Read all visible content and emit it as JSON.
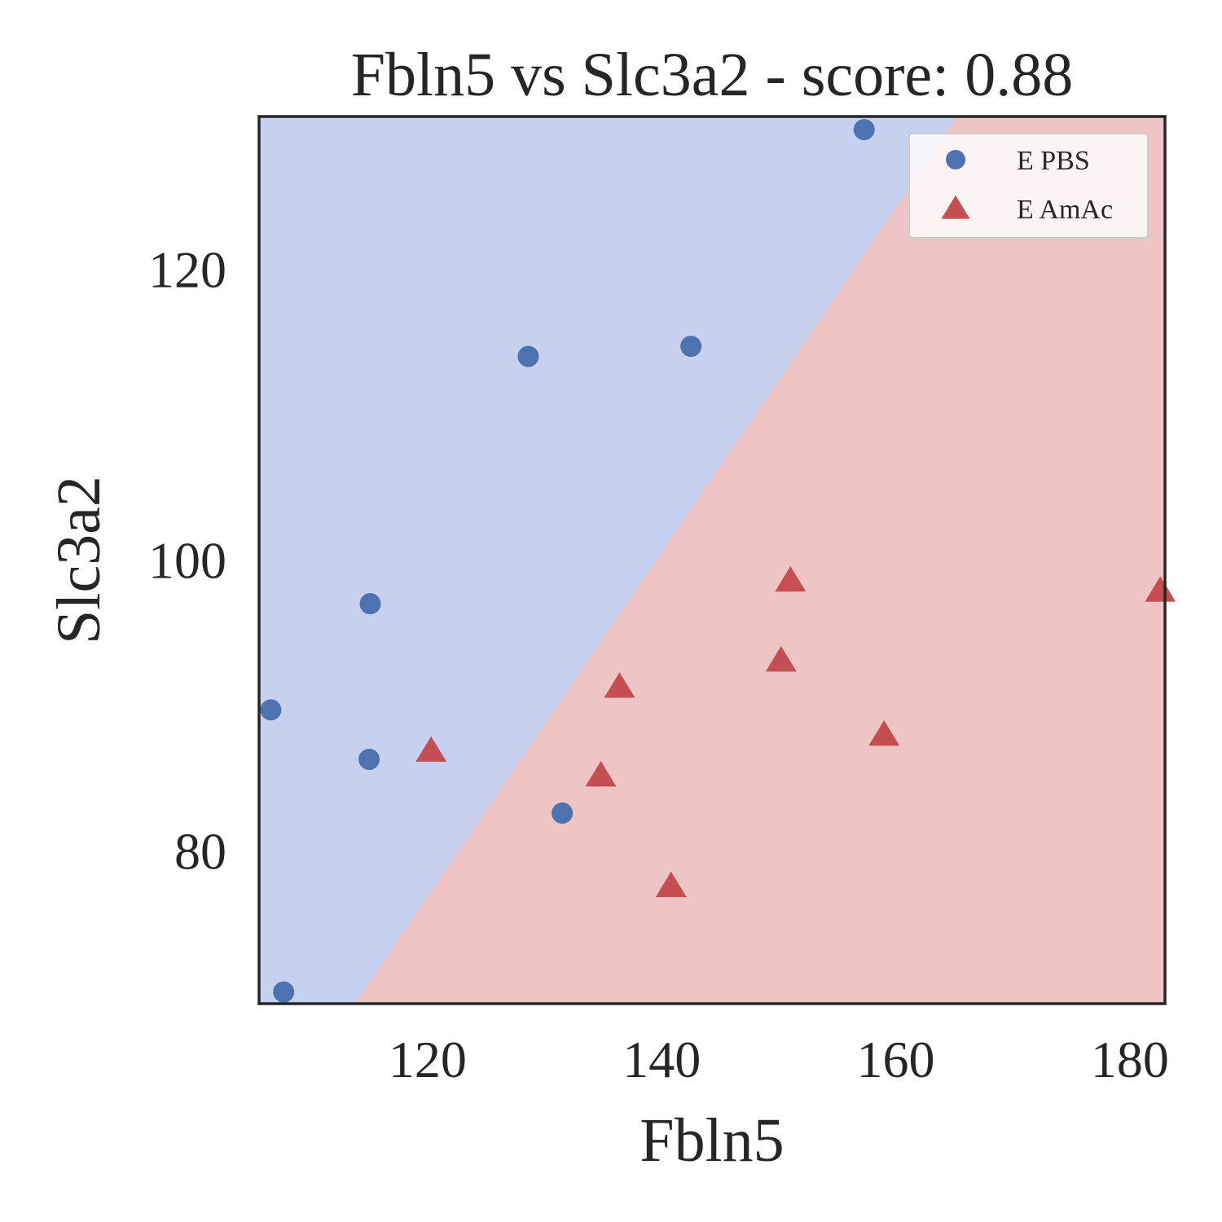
{
  "chart_data": {
    "type": "scatter",
    "title": "Fbln5 vs Slc3a2 - score: 0.88",
    "xlabel": "Fbln5",
    "ylabel": "Slc3a2",
    "xlim": [
      105.6,
      183.0
    ],
    "ylim": [
      69.5,
      130.5
    ],
    "xticks": [
      120,
      140,
      160,
      180
    ],
    "yticks": [
      80,
      100,
      120
    ],
    "grid": false,
    "legend_position": "top-right",
    "decision_boundary": {
      "points": [
        [
          113.8,
          69.5
        ],
        [
          165.3,
          130.5
        ]
      ],
      "upper_left_class": "E PBS",
      "lower_right_class": "E AmAc"
    },
    "series": [
      {
        "name": "E PBS",
        "marker": "circle",
        "color": "#4c72b0",
        "region_color": "#c8d0f0",
        "points": [
          [
            157.3,
            129.6
          ],
          [
            128.6,
            114.0
          ],
          [
            142.5,
            114.7
          ],
          [
            115.1,
            97.0
          ],
          [
            106.6,
            89.7
          ],
          [
            115.0,
            86.3
          ],
          [
            131.5,
            82.6
          ],
          [
            107.7,
            70.3
          ]
        ]
      },
      {
        "name": "E AmAc",
        "marker": "triangle",
        "color": "#c44e52",
        "region_color": "#eec4c4",
        "points": [
          [
            151.0,
            98.6
          ],
          [
            182.6,
            97.9
          ],
          [
            150.2,
            93.1
          ],
          [
            136.4,
            91.3
          ],
          [
            159.0,
            88.0
          ],
          [
            120.3,
            86.9
          ],
          [
            134.8,
            85.2
          ],
          [
            140.8,
            77.6
          ]
        ]
      }
    ]
  }
}
